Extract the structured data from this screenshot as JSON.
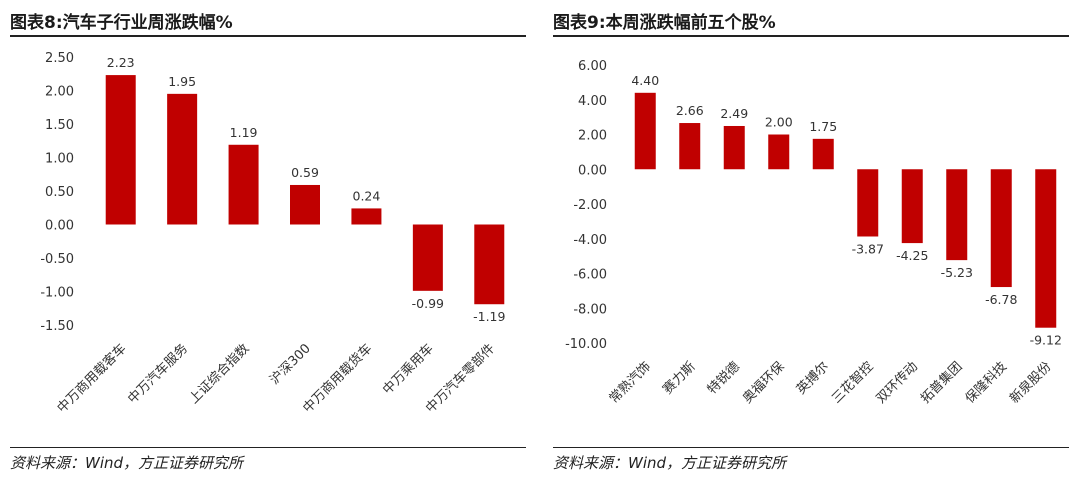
{
  "panels": [
    {
      "title": "图表8:汽车子行业周涨跌幅%",
      "source": "资料来源：Wind，方正证券研究所"
    },
    {
      "title": "图表9:本周涨跌幅前五个股%",
      "source": "资料来源：Wind，方正证券研究所"
    }
  ],
  "chart_data": [
    {
      "type": "bar",
      "title": "图表8:汽车子行业周涨跌幅%",
      "categories": [
        "中万商用载客车",
        "中万汽车服务",
        "上证综合指数",
        "沪深300",
        "中万商用载货车",
        "中万乘用车",
        "中万汽车零部件"
      ],
      "values": [
        2.23,
        1.95,
        1.19,
        0.59,
        0.24,
        -0.99,
        -1.19
      ],
      "value_labels": [
        "2.23",
        "1.95",
        "1.19",
        "0.59",
        "0.24",
        "-0.99",
        "-1.19"
      ],
      "yticks": [
        "2.50",
        "2.00",
        "1.50",
        "1.00",
        "0.50",
        "0.00",
        "-0.50",
        "-1.00",
        "-1.50"
      ],
      "ylim": [
        -1.5,
        2.5
      ],
      "grid": false,
      "bar_color": "#c00000"
    },
    {
      "type": "bar",
      "title": "图表9:本周涨跌幅前五个股%",
      "categories": [
        "常熟汽饰",
        "赛力斯",
        "特锐德",
        "奥福环保",
        "英搏尔",
        "三花智控",
        "双环传动",
        "拓普集团",
        "保隆科技",
        "新泉股份"
      ],
      "values": [
        4.4,
        2.66,
        2.49,
        2.0,
        1.75,
        -3.87,
        -4.25,
        -5.23,
        -6.78,
        -9.12
      ],
      "value_labels": [
        "4.40",
        "2.66",
        "2.49",
        "2.00",
        "1.75",
        "-3.87",
        "-4.25",
        "-5.23",
        "-6.78",
        "-9.12"
      ],
      "yticks": [
        "6.00",
        "4.00",
        "2.00",
        "0.00",
        "-2.00",
        "-4.00",
        "-6.00",
        "-8.00",
        "-10.00"
      ],
      "ylim": [
        -10,
        6
      ],
      "grid": false,
      "bar_color": "#c00000"
    }
  ]
}
